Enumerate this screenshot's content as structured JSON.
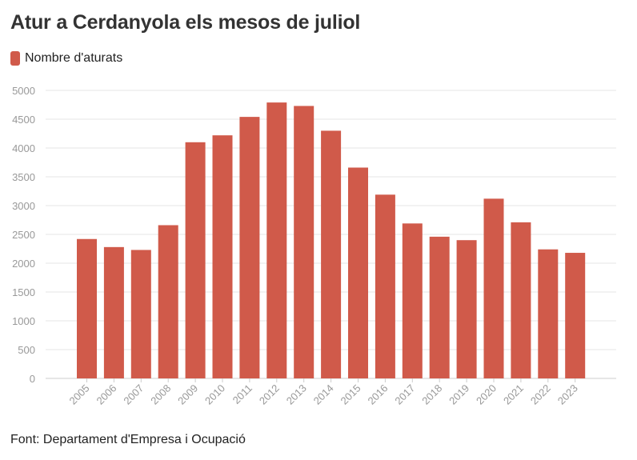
{
  "title": "Atur a Cerdanyola els mesos de juliol",
  "source": "Font: Departament d'Empresa i Ocupació",
  "colors": {
    "bar": "#d05a4a",
    "grid": "#e6e6e6",
    "tick_text": "#999999",
    "axis": "#cccccc"
  },
  "chart_data": {
    "type": "bar",
    "title": "Atur a Cerdanyola els mesos de juliol",
    "xlabel": "",
    "ylabel": "",
    "ylim": [
      0,
      5000
    ],
    "yticks": [
      0,
      500,
      1000,
      1500,
      2000,
      2500,
      3000,
      3500,
      4000,
      4500,
      5000
    ],
    "grid": true,
    "legend_position": "top-left",
    "categories": [
      "2005",
      "2006",
      "2007",
      "2008",
      "2009",
      "2010",
      "2011",
      "2012",
      "2013",
      "2014",
      "2015",
      "2016",
      "2017",
      "2018",
      "2019",
      "2020",
      "2021",
      "2022",
      "2023"
    ],
    "series": [
      {
        "name": "Nombre d'aturats",
        "values": [
          2420,
          2280,
          2230,
          2660,
          4100,
          4220,
          4540,
          4790,
          4730,
          4300,
          3660,
          3190,
          2690,
          2460,
          2400,
          3120,
          2710,
          2240,
          2180
        ]
      }
    ]
  }
}
